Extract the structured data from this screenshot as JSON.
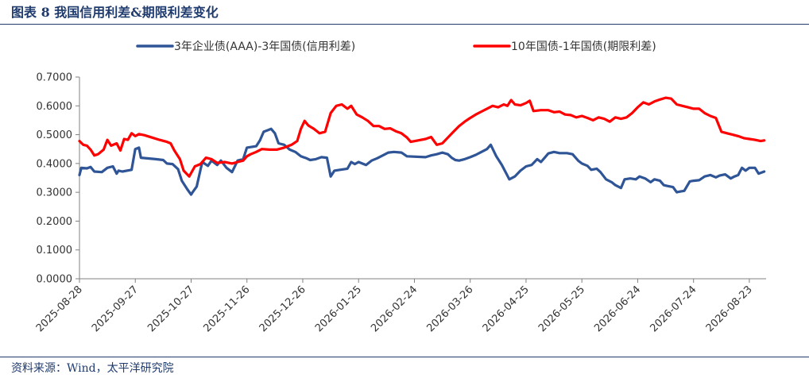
{
  "header": {
    "title": "图表 8 我国信用利差&期限利差变化"
  },
  "footer": {
    "source": "资料来源：Wind，太平洋研究院"
  },
  "colors": {
    "accent": "#1f3b6e",
    "credit": "#2f5597",
    "term": "#ff0000"
  },
  "chart_data": {
    "type": "line",
    "title": "",
    "xlabel": "",
    "ylabel": "",
    "ylim": [
      0,
      0.7
    ],
    "y_ticks": [
      "0.0000",
      "0.1000",
      "0.2000",
      "0.3000",
      "0.4000",
      "0.5000",
      "0.6000",
      "0.7000"
    ],
    "x_range": [
      "2025-08-28",
      "2026-09-01"
    ],
    "x_tick_labels": [
      "2025-08-28",
      "2025-09-27",
      "2025-10-27",
      "2025-11-26",
      "2025-12-26",
      "2026-01-25",
      "2026-02-24",
      "2026-03-26",
      "2026-04-25",
      "2026-05-25",
      "2026-06-24",
      "2026-07-24",
      "2026-08-23"
    ],
    "grid": false,
    "legend": "top",
    "series": [
      {
        "name": "3年企业债(AAA)-3年国债(信用利差)",
        "color": "#2f5597",
        "points": [
          [
            "2025-08-28",
            0.36
          ],
          [
            "2025-08-29",
            0.385
          ],
          [
            "2025-09-01",
            0.383
          ],
          [
            "2025-09-03",
            0.388
          ],
          [
            "2025-09-05",
            0.372
          ],
          [
            "2025-09-09",
            0.37
          ],
          [
            "2025-09-12",
            0.385
          ],
          [
            "2025-09-15",
            0.39
          ],
          [
            "2025-09-17",
            0.365
          ],
          [
            "2025-09-18",
            0.375
          ],
          [
            "2025-09-20",
            0.372
          ],
          [
            "2025-09-25",
            0.378
          ],
          [
            "2025-09-27",
            0.45
          ],
          [
            "2025-09-29",
            0.455
          ],
          [
            "2025-09-30",
            0.42
          ],
          [
            "2025-10-08",
            0.415
          ],
          [
            "2025-10-12",
            0.412
          ],
          [
            "2025-10-14",
            0.4
          ],
          [
            "2025-10-17",
            0.398
          ],
          [
            "2025-10-20",
            0.38
          ],
          [
            "2025-10-22",
            0.34
          ],
          [
            "2025-10-25",
            0.31
          ],
          [
            "2025-10-27",
            0.292
          ],
          [
            "2025-10-28",
            0.302
          ],
          [
            "2025-10-30",
            0.32
          ],
          [
            "2025-11-02",
            0.405
          ],
          [
            "2025-11-05",
            0.392
          ],
          [
            "2025-11-07",
            0.41
          ],
          [
            "2025-11-10",
            0.395
          ],
          [
            "2025-11-12",
            0.41
          ],
          [
            "2025-11-15",
            0.385
          ],
          [
            "2025-11-18",
            0.37
          ],
          [
            "2025-11-21",
            0.41
          ],
          [
            "2025-11-24",
            0.415
          ],
          [
            "2025-11-26",
            0.455
          ],
          [
            "2025-11-29",
            0.458
          ],
          [
            "2025-12-01",
            0.46
          ],
          [
            "2025-12-03",
            0.48
          ],
          [
            "2025-12-05",
            0.51
          ],
          [
            "2025-12-07",
            0.515
          ],
          [
            "2025-12-09",
            0.52
          ],
          [
            "2025-12-11",
            0.505
          ],
          [
            "2025-12-13",
            0.47
          ],
          [
            "2025-12-16",
            0.465
          ],
          [
            "2025-12-19",
            0.448
          ],
          [
            "2025-12-22",
            0.44
          ],
          [
            "2025-12-25",
            0.425
          ],
          [
            "2025-12-28",
            0.418
          ],
          [
            "2025-12-30",
            0.412
          ],
          [
            "2026-01-02",
            0.415
          ],
          [
            "2026-01-05",
            0.422
          ],
          [
            "2026-01-08",
            0.42
          ],
          [
            "2026-01-10",
            0.355
          ],
          [
            "2026-01-12",
            0.375
          ],
          [
            "2026-01-15",
            0.378
          ],
          [
            "2026-01-19",
            0.382
          ],
          [
            "2026-01-21",
            0.405
          ],
          [
            "2026-01-23",
            0.398
          ],
          [
            "2026-01-25",
            0.405
          ],
          [
            "2026-01-27",
            0.4
          ],
          [
            "2026-01-29",
            0.395
          ],
          [
            "2026-02-01",
            0.41
          ],
          [
            "2026-02-04",
            0.418
          ],
          [
            "2026-02-07",
            0.428
          ],
          [
            "2026-02-10",
            0.438
          ],
          [
            "2026-02-13",
            0.44
          ],
          [
            "2026-02-17",
            0.438
          ],
          [
            "2026-02-20",
            0.425
          ],
          [
            "2026-03-02",
            0.422
          ],
          [
            "2026-03-05",
            0.428
          ],
          [
            "2026-03-08",
            0.432
          ],
          [
            "2026-03-11",
            0.438
          ],
          [
            "2026-03-14",
            0.432
          ],
          [
            "2026-03-16",
            0.42
          ],
          [
            "2026-03-18",
            0.412
          ],
          [
            "2026-03-20",
            0.41
          ],
          [
            "2026-03-23",
            0.415
          ],
          [
            "2026-03-26",
            0.422
          ],
          [
            "2026-03-29",
            0.43
          ],
          [
            "2026-04-01",
            0.44
          ],
          [
            "2026-04-04",
            0.45
          ],
          [
            "2026-04-06",
            0.465
          ],
          [
            "2026-04-09",
            0.425
          ],
          [
            "2026-04-12",
            0.395
          ],
          [
            "2026-04-14",
            0.37
          ],
          [
            "2026-04-16",
            0.345
          ],
          [
            "2026-04-19",
            0.355
          ],
          [
            "2026-04-22",
            0.375
          ],
          [
            "2026-04-25",
            0.39
          ],
          [
            "2026-04-28",
            0.395
          ],
          [
            "2026-05-01",
            0.415
          ],
          [
            "2026-05-03",
            0.405
          ],
          [
            "2026-05-05",
            0.42
          ],
          [
            "2026-05-07",
            0.435
          ],
          [
            "2026-05-10",
            0.44
          ],
          [
            "2026-05-13",
            0.436
          ],
          [
            "2026-05-17",
            0.436
          ],
          [
            "2026-05-20",
            0.432
          ],
          [
            "2026-05-23",
            0.41
          ],
          [
            "2026-05-25",
            0.4
          ],
          [
            "2026-05-28",
            0.392
          ],
          [
            "2026-05-30",
            0.378
          ],
          [
            "2026-06-02",
            0.382
          ],
          [
            "2026-06-04",
            0.37
          ],
          [
            "2026-06-07",
            0.345
          ],
          [
            "2026-06-10",
            0.335
          ],
          [
            "2026-06-12",
            0.325
          ],
          [
            "2026-06-15",
            0.315
          ],
          [
            "2026-06-17",
            0.345
          ],
          [
            "2026-06-20",
            0.348
          ],
          [
            "2026-06-23",
            0.345
          ],
          [
            "2026-06-25",
            0.355
          ],
          [
            "2026-06-28",
            0.348
          ],
          [
            "2026-07-01",
            0.335
          ],
          [
            "2026-07-03",
            0.345
          ],
          [
            "2026-07-06",
            0.34
          ],
          [
            "2026-07-08",
            0.325
          ],
          [
            "2026-07-10",
            0.322
          ],
          [
            "2026-07-13",
            0.318
          ],
          [
            "2026-07-15",
            0.3
          ],
          [
            "2026-07-17",
            0.303
          ],
          [
            "2026-07-19",
            0.305
          ],
          [
            "2026-07-22",
            0.338
          ],
          [
            "2026-07-24",
            0.34
          ],
          [
            "2026-07-27",
            0.342
          ],
          [
            "2026-07-30",
            0.355
          ],
          [
            "2026-08-02",
            0.36
          ],
          [
            "2026-08-05",
            0.352
          ],
          [
            "2026-08-07",
            0.358
          ],
          [
            "2026-08-10",
            0.362
          ],
          [
            "2026-08-13",
            0.348
          ],
          [
            "2026-08-15",
            0.355
          ],
          [
            "2026-08-17",
            0.36
          ],
          [
            "2026-08-19",
            0.385
          ],
          [
            "2026-08-21",
            0.375
          ],
          [
            "2026-08-23",
            0.385
          ],
          [
            "2026-08-26",
            0.385
          ],
          [
            "2026-08-28",
            0.365
          ],
          [
            "2026-08-31",
            0.372
          ]
        ]
      },
      {
        "name": "10年国债-1年国债(期限利差)",
        "color": "#ff0000",
        "points": [
          [
            "2025-08-28",
            0.478
          ],
          [
            "2025-08-30",
            0.465
          ],
          [
            "2025-09-01",
            0.462
          ],
          [
            "2025-09-03",
            0.448
          ],
          [
            "2025-09-05",
            0.428
          ],
          [
            "2025-09-07",
            0.432
          ],
          [
            "2025-09-10",
            0.448
          ],
          [
            "2025-09-12",
            0.482
          ],
          [
            "2025-09-14",
            0.462
          ],
          [
            "2025-09-17",
            0.47
          ],
          [
            "2025-09-19",
            0.445
          ],
          [
            "2025-09-21",
            0.485
          ],
          [
            "2025-09-23",
            0.482
          ],
          [
            "2025-09-25",
            0.505
          ],
          [
            "2025-09-27",
            0.495
          ],
          [
            "2025-09-29",
            0.502
          ],
          [
            "2025-10-02",
            0.498
          ],
          [
            "2025-10-06",
            0.49
          ],
          [
            "2025-10-10",
            0.482
          ],
          [
            "2025-10-14",
            0.475
          ],
          [
            "2025-10-16",
            0.47
          ],
          [
            "2025-10-18",
            0.445
          ],
          [
            "2025-10-21",
            0.415
          ],
          [
            "2025-10-23",
            0.375
          ],
          [
            "2025-10-26",
            0.355
          ],
          [
            "2025-10-29",
            0.39
          ],
          [
            "2025-11-01",
            0.398
          ],
          [
            "2025-11-04",
            0.42
          ],
          [
            "2025-11-07",
            0.415
          ],
          [
            "2025-11-10",
            0.402
          ],
          [
            "2025-11-14",
            0.405
          ],
          [
            "2025-11-18",
            0.4
          ],
          [
            "2025-11-21",
            0.405
          ],
          [
            "2025-11-24",
            0.41
          ],
          [
            "2025-11-26",
            0.425
          ],
          [
            "2025-11-28",
            0.432
          ],
          [
            "2025-12-01",
            0.44
          ],
          [
            "2025-12-04",
            0.45
          ],
          [
            "2025-12-08",
            0.448
          ],
          [
            "2025-12-12",
            0.448
          ],
          [
            "2025-12-16",
            0.455
          ],
          [
            "2025-12-20",
            0.465
          ],
          [
            "2025-12-23",
            0.478
          ],
          [
            "2025-12-25",
            0.52
          ],
          [
            "2025-12-27",
            0.548
          ],
          [
            "2025-12-29",
            0.532
          ],
          [
            "2026-01-01",
            0.52
          ],
          [
            "2026-01-04",
            0.505
          ],
          [
            "2026-01-07",
            0.51
          ],
          [
            "2026-01-10",
            0.575
          ],
          [
            "2026-01-13",
            0.6
          ],
          [
            "2026-01-16",
            0.605
          ],
          [
            "2026-01-19",
            0.59
          ],
          [
            "2026-01-21",
            0.6
          ],
          [
            "2026-01-24",
            0.57
          ],
          [
            "2026-01-27",
            0.56
          ],
          [
            "2026-01-30",
            0.548
          ],
          [
            "2026-02-02",
            0.53
          ],
          [
            "2026-02-05",
            0.53
          ],
          [
            "2026-02-08",
            0.52
          ],
          [
            "2026-02-11",
            0.522
          ],
          [
            "2026-02-14",
            0.512
          ],
          [
            "2026-02-17",
            0.505
          ],
          [
            "2026-02-20",
            0.49
          ],
          [
            "2026-02-22",
            0.475
          ],
          [
            "2026-02-26",
            0.48
          ],
          [
            "2026-03-02",
            0.485
          ],
          [
            "2026-03-05",
            0.492
          ],
          [
            "2026-03-08",
            0.465
          ],
          [
            "2026-03-11",
            0.47
          ],
          [
            "2026-03-14",
            0.49
          ],
          [
            "2026-03-17",
            0.51
          ],
          [
            "2026-03-20",
            0.53
          ],
          [
            "2026-03-23",
            0.545
          ],
          [
            "2026-03-26",
            0.558
          ],
          [
            "2026-03-29",
            0.57
          ],
          [
            "2026-04-01",
            0.58
          ],
          [
            "2026-04-04",
            0.59
          ],
          [
            "2026-04-07",
            0.6
          ],
          [
            "2026-04-10",
            0.595
          ],
          [
            "2026-04-13",
            0.605
          ],
          [
            "2026-04-15",
            0.6
          ],
          [
            "2026-04-17",
            0.62
          ],
          [
            "2026-04-19",
            0.605
          ],
          [
            "2026-04-22",
            0.602
          ],
          [
            "2026-04-25",
            0.61
          ],
          [
            "2026-04-27",
            0.618
          ],
          [
            "2026-04-29",
            0.582
          ],
          [
            "2026-05-03",
            0.585
          ],
          [
            "2026-05-07",
            0.585
          ],
          [
            "2026-05-10",
            0.578
          ],
          [
            "2026-05-13",
            0.58
          ],
          [
            "2026-05-16",
            0.57
          ],
          [
            "2026-05-19",
            0.568
          ],
          [
            "2026-05-22",
            0.56
          ],
          [
            "2026-05-25",
            0.565
          ],
          [
            "2026-05-28",
            0.558
          ],
          [
            "2026-05-31",
            0.55
          ],
          [
            "2026-06-03",
            0.56
          ],
          [
            "2026-06-06",
            0.555
          ],
          [
            "2026-06-09",
            0.545
          ],
          [
            "2026-06-12",
            0.56
          ],
          [
            "2026-06-15",
            0.555
          ],
          [
            "2026-06-18",
            0.56
          ],
          [
            "2026-06-21",
            0.575
          ],
          [
            "2026-06-24",
            0.595
          ],
          [
            "2026-06-27",
            0.612
          ],
          [
            "2026-06-30",
            0.605
          ],
          [
            "2026-07-03",
            0.615
          ],
          [
            "2026-07-06",
            0.622
          ],
          [
            "2026-07-09",
            0.628
          ],
          [
            "2026-07-12",
            0.625
          ],
          [
            "2026-07-15",
            0.605
          ],
          [
            "2026-07-18",
            0.6
          ],
          [
            "2026-07-21",
            0.595
          ],
          [
            "2026-07-24",
            0.59
          ],
          [
            "2026-07-27",
            0.59
          ],
          [
            "2026-07-30",
            0.575
          ],
          [
            "2026-08-02",
            0.565
          ],
          [
            "2026-08-05",
            0.558
          ],
          [
            "2026-08-08",
            0.51
          ],
          [
            "2026-08-11",
            0.505
          ],
          [
            "2026-08-14",
            0.5
          ],
          [
            "2026-08-17",
            0.495
          ],
          [
            "2026-08-20",
            0.488
          ],
          [
            "2026-08-23",
            0.485
          ],
          [
            "2026-08-26",
            0.482
          ],
          [
            "2026-08-29",
            0.478
          ],
          [
            "2026-08-31",
            0.48
          ]
        ]
      }
    ]
  }
}
